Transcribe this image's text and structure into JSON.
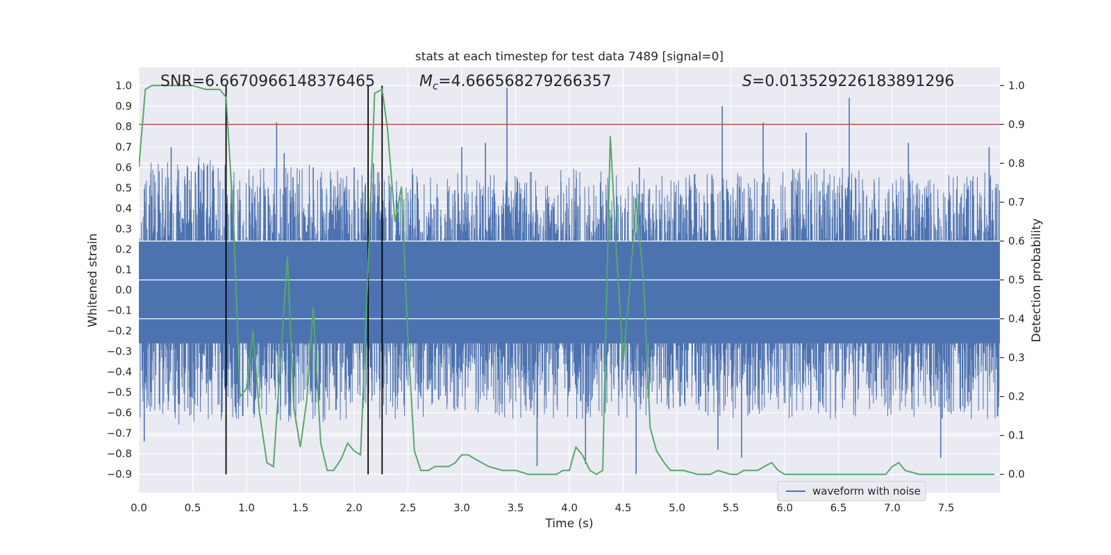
{
  "chart_data": {
    "type": "line",
    "title": "stats at each timestep for test data 7489 [signal=0]",
    "xlabel": "Time (s)",
    "ylabel": "Whitened strain",
    "y2label": "Detection probability",
    "xlim": [
      0.0,
      8.0
    ],
    "ylim": [
      -0.99,
      1.09
    ],
    "y2lim": [
      -0.047,
      1.047
    ],
    "xticks": [
      "0.0",
      "0.5",
      "1.0",
      "1.5",
      "2.0",
      "2.5",
      "3.0",
      "3.5",
      "4.0",
      "4.5",
      "5.0",
      "5.5",
      "6.0",
      "6.5",
      "7.0",
      "7.5"
    ],
    "xtick_values": [
      0.0,
      0.5,
      1.0,
      1.5,
      2.0,
      2.5,
      3.0,
      3.5,
      4.0,
      4.5,
      5.0,
      5.5,
      6.0,
      6.5,
      7.0,
      7.5
    ],
    "yticks": [
      "−0.9",
      "−0.8",
      "−0.7",
      "−0.6",
      "−0.5",
      "−0.4",
      "−0.3",
      "−0.2",
      "−0.1",
      "0.0",
      "0.1",
      "0.2",
      "0.3",
      "0.4",
      "0.5",
      "0.6",
      "0.7",
      "0.8",
      "0.9",
      "1.0"
    ],
    "ytick_values": [
      -0.9,
      -0.8,
      -0.7,
      -0.6,
      -0.5,
      -0.4,
      -0.3,
      -0.2,
      -0.1,
      0.0,
      0.1,
      0.2,
      0.3,
      0.4,
      0.5,
      0.6,
      0.7,
      0.8,
      0.9,
      1.0
    ],
    "y2ticks": [
      "0.0",
      "0.1",
      "0.2",
      "0.3",
      "0.4",
      "0.5",
      "0.6",
      "0.7",
      "0.8",
      "0.9",
      "1.0"
    ],
    "y2tick_values": [
      0.0,
      0.1,
      0.2,
      0.3,
      0.4,
      0.5,
      0.6,
      0.7,
      0.8,
      0.9,
      1.0
    ],
    "grid": true,
    "legend": {
      "position": "lower-right",
      "entries": [
        "waveform with noise"
      ]
    },
    "annotations": {
      "snr": "SNR=6.6670966148376465",
      "mc_prefix": "M",
      "mc_sub": "c",
      "mc_value": "=4.666568279266357",
      "s_prefix": "S",
      "s_value": "=0.013529226183891296"
    },
    "threshold_line": {
      "y2": 0.9,
      "color": "#c44e52"
    },
    "vertical_markers": {
      "x": [
        0.81,
        2.13,
        2.26
      ],
      "color": "#000000"
    },
    "waveform": {
      "name": "waveform with noise",
      "color": "#4c72b0",
      "envelope_upper": [
        [
          0.0,
          0.42
        ],
        [
          0.5,
          0.45
        ],
        [
          1.0,
          0.4
        ],
        [
          1.5,
          0.42
        ],
        [
          2.0,
          0.38
        ],
        [
          2.5,
          0.4
        ],
        [
          3.0,
          0.38
        ],
        [
          3.5,
          0.38
        ],
        [
          4.0,
          0.4
        ],
        [
          4.5,
          0.38
        ],
        [
          5.0,
          0.38
        ],
        [
          5.5,
          0.38
        ],
        [
          6.0,
          0.4
        ],
        [
          6.5,
          0.4
        ],
        [
          7.0,
          0.38
        ],
        [
          7.5,
          0.38
        ],
        [
          8.0,
          0.4
        ]
      ],
      "envelope_lower": [
        [
          0.0,
          -0.42
        ],
        [
          0.5,
          -0.45
        ],
        [
          1.0,
          -0.42
        ],
        [
          1.5,
          -0.44
        ],
        [
          2.0,
          -0.42
        ],
        [
          2.5,
          -0.42
        ],
        [
          3.0,
          -0.4
        ],
        [
          3.5,
          -0.42
        ],
        [
          4.0,
          -0.42
        ],
        [
          4.5,
          -0.42
        ],
        [
          5.0,
          -0.4
        ],
        [
          5.5,
          -0.42
        ],
        [
          6.0,
          -0.42
        ],
        [
          6.5,
          -0.42
        ],
        [
          7.0,
          -0.42
        ],
        [
          7.5,
          -0.42
        ],
        [
          8.0,
          -0.42
        ]
      ],
      "peaks": [
        [
          0.05,
          -0.74
        ],
        [
          0.3,
          0.7
        ],
        [
          0.45,
          0.6
        ],
        [
          1.28,
          0.82
        ],
        [
          1.35,
          0.67
        ],
        [
          1.62,
          0.6
        ],
        [
          2.0,
          0.6
        ],
        [
          2.18,
          0.62
        ],
        [
          3.0,
          0.7
        ],
        [
          3.22,
          0.72
        ],
        [
          3.42,
          0.99
        ],
        [
          3.7,
          -0.86
        ],
        [
          4.15,
          -0.85
        ],
        [
          4.62,
          -0.9
        ],
        [
          4.65,
          0.6
        ],
        [
          5.42,
          0.9
        ],
        [
          5.38,
          -0.78
        ],
        [
          5.6,
          -0.82
        ],
        [
          5.8,
          0.82
        ],
        [
          6.2,
          0.77
        ],
        [
          6.6,
          0.94
        ],
        [
          7.15,
          0.72
        ],
        [
          7.45,
          -0.82
        ],
        [
          7.9,
          0.7
        ]
      ]
    },
    "series": [
      {
        "name": "",
        "axis": "right",
        "color": "#55a868",
        "x": [
          0.0,
          0.06,
          0.12,
          0.25,
          0.38,
          0.5,
          0.62,
          0.75,
          0.81,
          0.88,
          0.94,
          1.0,
          1.06,
          1.12,
          1.19,
          1.25,
          1.31,
          1.38,
          1.44,
          1.5,
          1.56,
          1.62,
          1.69,
          1.75,
          1.81,
          1.88,
          1.94,
          2.0,
          2.06,
          2.13,
          2.19,
          2.26,
          2.31,
          2.38,
          2.44,
          2.5,
          2.56,
          2.62,
          2.69,
          2.75,
          2.81,
          2.88,
          2.94,
          3.0,
          3.06,
          3.12,
          3.25,
          3.38,
          3.5,
          3.62,
          3.75,
          3.88,
          3.94,
          4.0,
          4.06,
          4.12,
          4.19,
          4.25,
          4.31,
          4.38,
          4.44,
          4.5,
          4.56,
          4.62,
          4.69,
          4.75,
          4.81,
          4.88,
          4.94,
          5.0,
          5.06,
          5.19,
          5.31,
          5.38,
          5.5,
          5.56,
          5.62,
          5.75,
          5.81,
          5.88,
          5.94,
          6.0,
          6.12,
          6.25,
          6.38,
          6.5,
          6.62,
          6.75,
          6.88,
          6.94,
          7.0,
          7.06,
          7.12,
          7.25,
          7.5,
          7.75,
          7.95
        ],
        "values": [
          0.79,
          0.99,
          1.0,
          1.0,
          1.0,
          1.0,
          0.99,
          0.99,
          0.97,
          0.65,
          0.2,
          0.22,
          0.37,
          0.16,
          0.03,
          0.02,
          0.27,
          0.56,
          0.17,
          0.07,
          0.19,
          0.43,
          0.08,
          0.01,
          0.01,
          0.04,
          0.08,
          0.06,
          0.05,
          0.53,
          0.98,
          0.99,
          0.89,
          0.65,
          0.74,
          0.35,
          0.06,
          0.01,
          0.01,
          0.02,
          0.02,
          0.02,
          0.03,
          0.05,
          0.05,
          0.04,
          0.02,
          0.01,
          0.01,
          0.0,
          0.0,
          0.0,
          0.01,
          0.01,
          0.07,
          0.05,
          0.01,
          0.0,
          0.01,
          0.87,
          0.56,
          0.29,
          0.48,
          0.71,
          0.49,
          0.12,
          0.06,
          0.03,
          0.01,
          0.01,
          0.01,
          0.0,
          0.0,
          0.01,
          0.0,
          0.0,
          0.01,
          0.01,
          0.02,
          0.03,
          0.01,
          0.0,
          0.0,
          0.0,
          0.0,
          0.0,
          0.0,
          0.0,
          0.0,
          0.0,
          0.02,
          0.03,
          0.01,
          0.0,
          0.0,
          0.0,
          0.0
        ]
      }
    ]
  }
}
